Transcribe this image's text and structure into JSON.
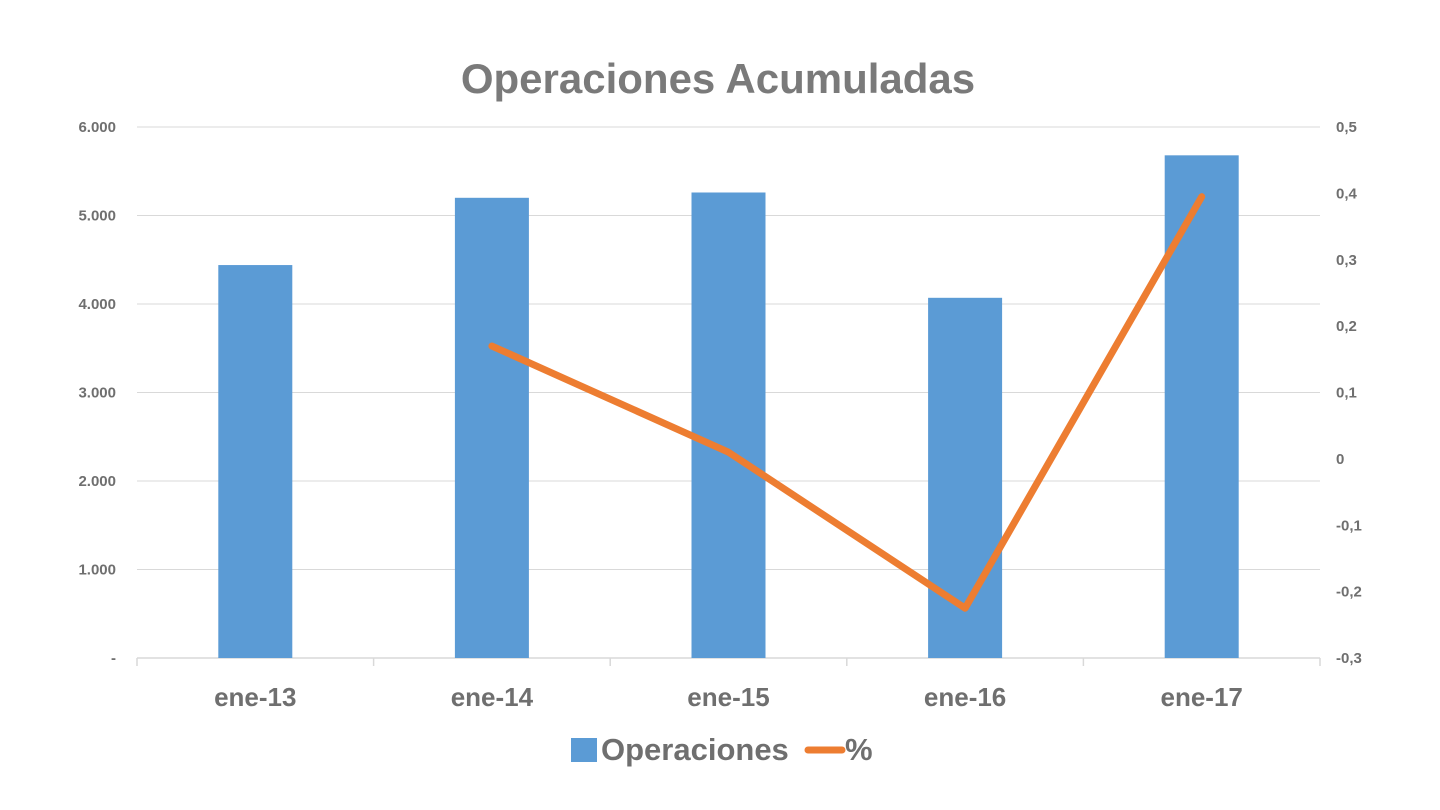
{
  "chart_data": {
    "type": "bar",
    "title": "Operaciones Acumuladas",
    "categories": [
      "ene-13",
      "ene-14",
      "ene-15",
      "ene-16",
      "ene-17"
    ],
    "series": [
      {
        "name": "Operaciones",
        "kind": "bar",
        "axis": "left",
        "color": "#5b9bd5",
        "values": [
          4440,
          5200,
          5260,
          4070,
          5680
        ]
      },
      {
        "name": "%",
        "kind": "line",
        "axis": "right",
        "color": "#ed7d31",
        "values": [
          null,
          0.17,
          0.01,
          -0.225,
          0.395
        ]
      }
    ],
    "y_left": {
      "min": 0,
      "max": 6000,
      "ticks": [
        0,
        1000,
        2000,
        3000,
        4000,
        5000,
        6000
      ],
      "tick_labels": [
        "-",
        "1.000",
        "2.000",
        "3.000",
        "4.000",
        "5.000",
        "6.000"
      ]
    },
    "y_right": {
      "min": -0.3,
      "max": 0.5,
      "ticks": [
        -0.3,
        -0.2,
        -0.1,
        0,
        0.1,
        0.2,
        0.3,
        0.4,
        0.5
      ],
      "tick_labels": [
        "-0,3",
        "-0,2",
        "-0,1",
        "0",
        "0,1",
        "0,2",
        "0,3",
        "0,4",
        "0,5"
      ]
    },
    "grid": true,
    "legend": {
      "position": "bottom",
      "items": [
        "Operaciones",
        "%"
      ]
    }
  }
}
